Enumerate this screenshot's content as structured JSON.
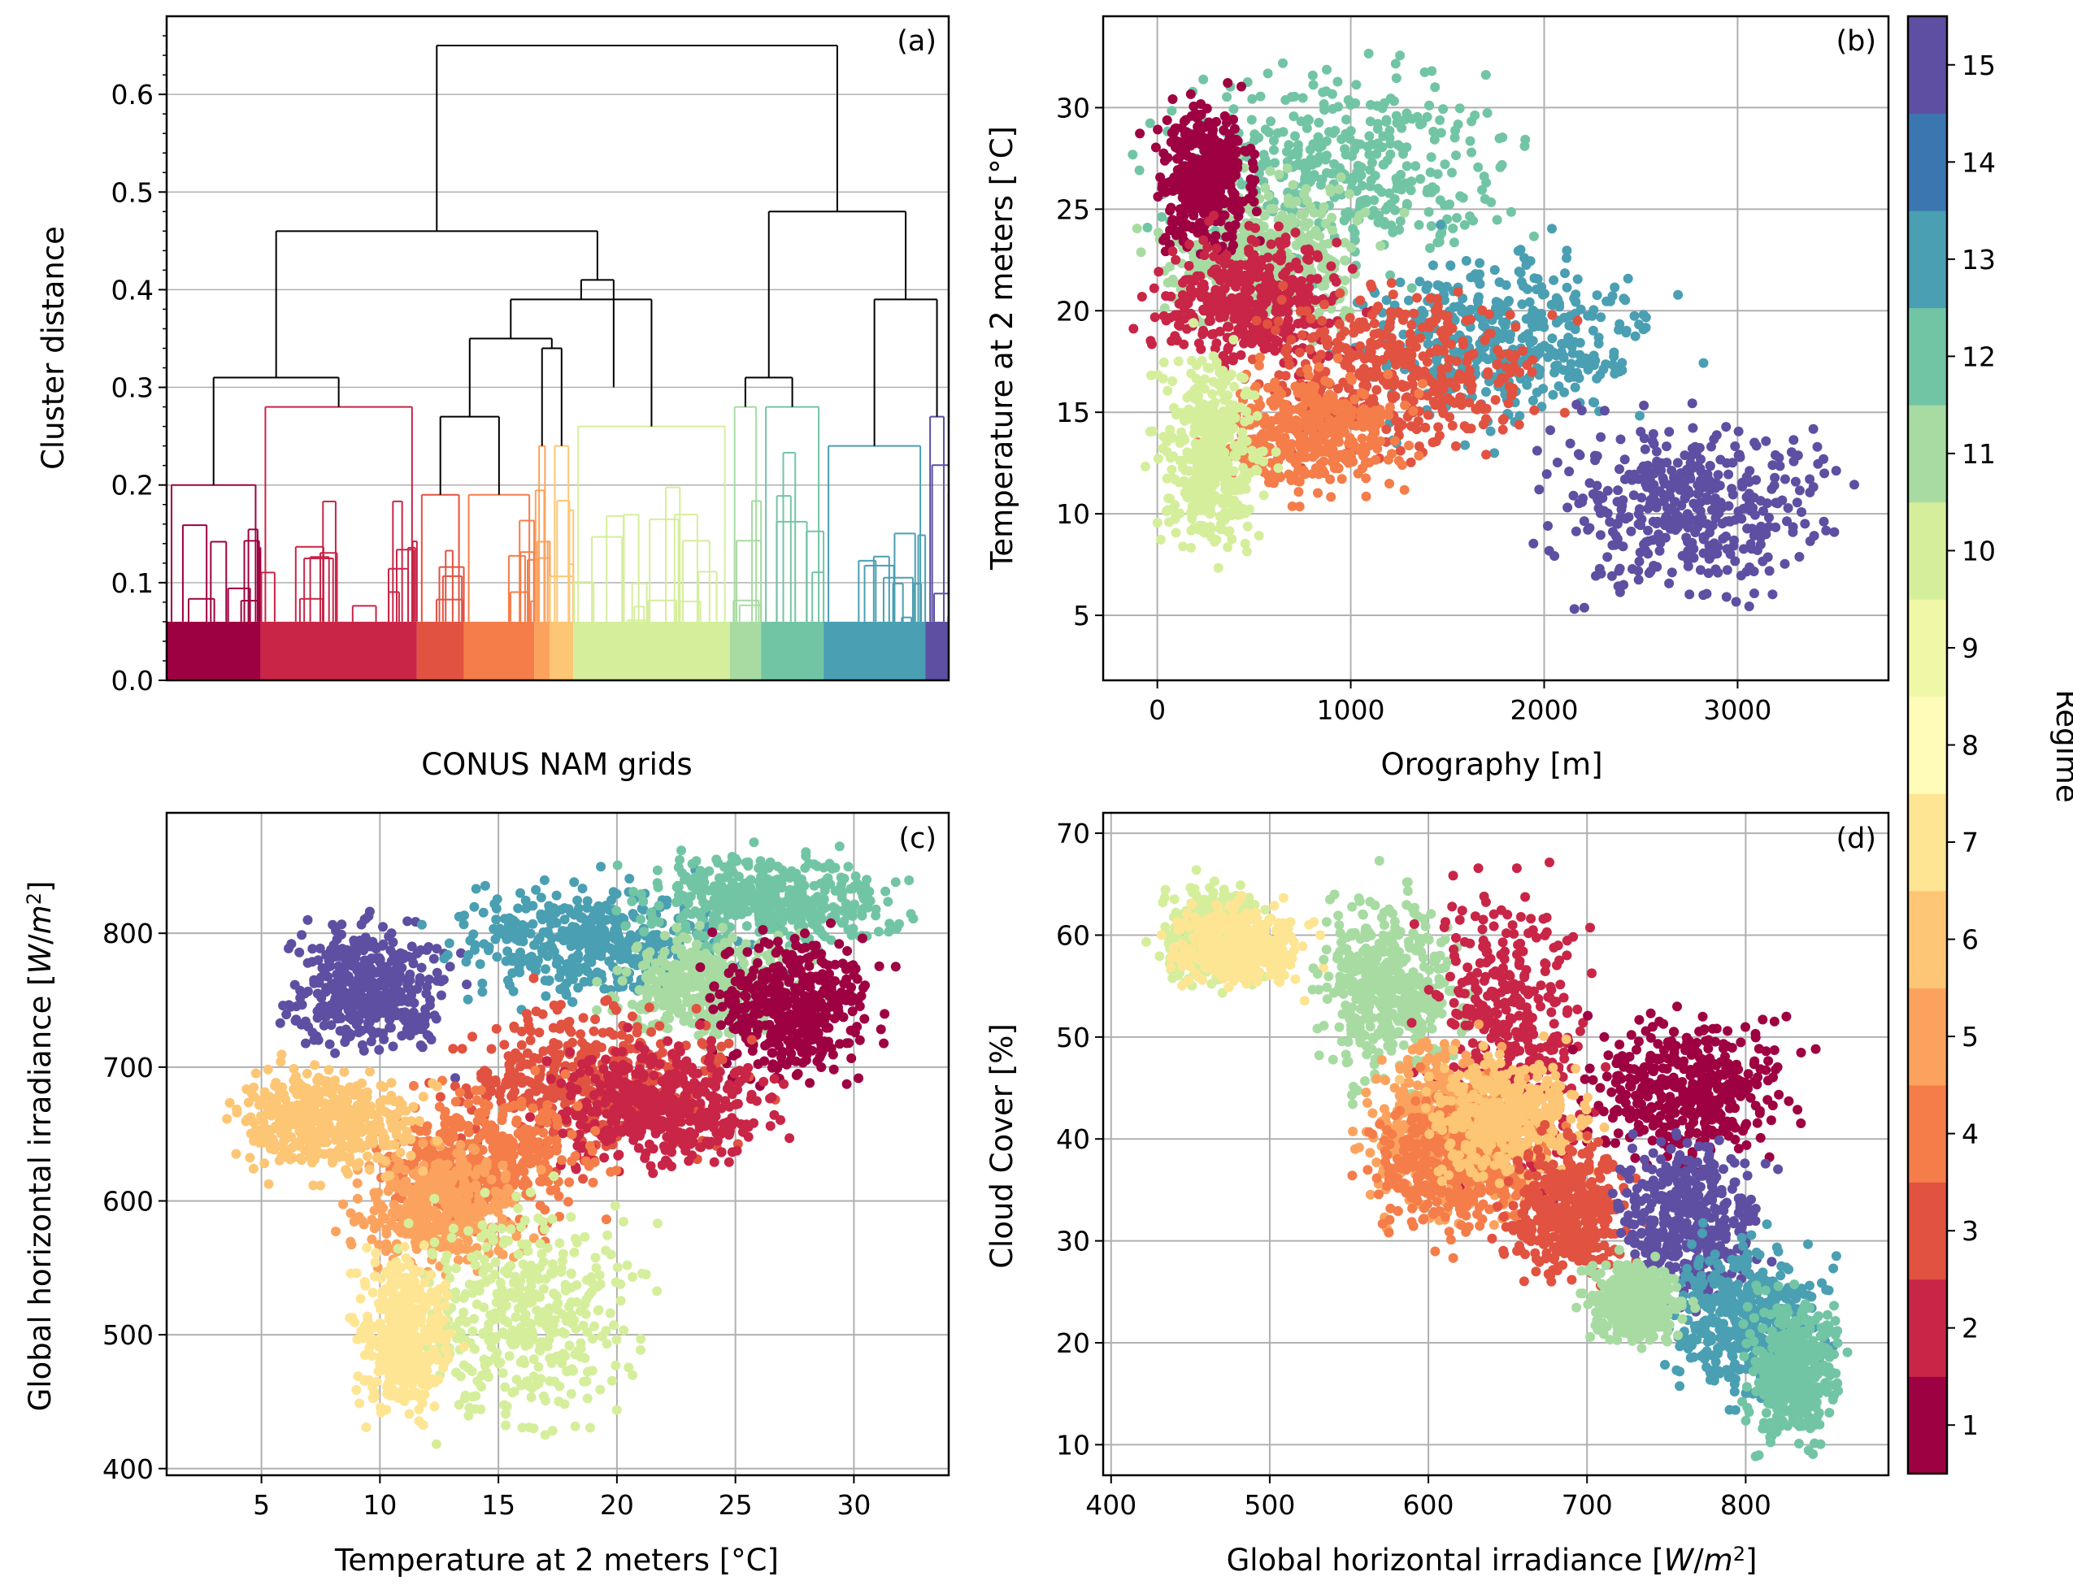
{
  "figure": {
    "colorbar_label": "Regime",
    "colorbar_ticks": [
      "1",
      "2",
      "3",
      "4",
      "5",
      "6",
      "7",
      "8",
      "9",
      "10",
      "11",
      "12",
      "13",
      "14",
      "15"
    ],
    "regime_colors": [
      "#9e0142",
      "#c82547",
      "#e15240",
      "#f47d4a",
      "#fba35e",
      "#fcc674",
      "#fee593",
      "#fffbb8",
      "#f0f8a8",
      "#d5ee9b",
      "#a7dba2",
      "#72c5a4",
      "#4a9fb2",
      "#3c76b1",
      "#5e4fa2"
    ]
  },
  "chart_data": [
    {
      "panel": "(a)",
      "type": "dendrogram",
      "ylabel": "Cluster distance",
      "xlabel": "CONUS NAM grids",
      "ylim": [
        0,
        0.68
      ],
      "yticks": [
        "0.0",
        "0.1",
        "0.2",
        "0.3",
        "0.4",
        "0.5",
        "0.6"
      ],
      "grid": "horizontal",
      "root_height": 0.65,
      "top_merges": [
        0.46,
        0.48,
        0.41,
        0.39,
        0.35,
        0.34,
        0.31,
        0.33
      ]
    },
    {
      "panel": "(b)",
      "type": "scatter",
      "xlabel": "Orography [m]",
      "ylabel": "Temperature at 2 meters [°C]",
      "xlim": [
        -280,
        3780
      ],
      "ylim": [
        1.8,
        34.5
      ],
      "xticks": [
        "0",
        "1000",
        "2000",
        "3000"
      ],
      "yticks": [
        "5",
        "10",
        "15",
        "20",
        "25",
        "30"
      ],
      "grid": true,
      "regime_clouds": [
        {
          "regime": 12,
          "x": [
            0,
            1800
          ],
          "y": [
            22,
            32
          ]
        },
        {
          "regime": 11,
          "x": [
            0,
            1100
          ],
          "y": [
            19,
            27
          ]
        },
        {
          "regime": 13,
          "x": [
            1000,
            2600
          ],
          "y": [
            14,
            23
          ]
        },
        {
          "regime": 1,
          "x": [
            0,
            500
          ],
          "y": [
            23,
            30
          ]
        },
        {
          "regime": 2,
          "x": [
            0,
            1000
          ],
          "y": [
            17,
            24
          ]
        },
        {
          "regime": 3,
          "x": [
            500,
            2000
          ],
          "y": [
            13,
            21
          ]
        },
        {
          "regime": 4,
          "x": [
            300,
            1300
          ],
          "y": [
            11,
            17
          ]
        },
        {
          "regime": 15,
          "x": [
            2000,
            3500
          ],
          "y": [
            6,
            15
          ]
        },
        {
          "regime": 10,
          "x": [
            0,
            550
          ],
          "y": [
            8,
            18
          ]
        }
      ]
    },
    {
      "panel": "(c)",
      "type": "scatter",
      "xlabel": "Temperature at 2 meters [°C]",
      "ylabel": "Global horizontal irradiance [W/m²]",
      "xlim": [
        1,
        34
      ],
      "ylim": [
        395,
        890
      ],
      "xticks": [
        "5",
        "10",
        "15",
        "20",
        "25",
        "30"
      ],
      "yticks": [
        "400",
        "500",
        "600",
        "700",
        "800"
      ],
      "grid": true,
      "regime_clouds": [
        {
          "regime": 15,
          "x": [
            6,
            13
          ],
          "y": [
            710,
            810
          ]
        },
        {
          "regime": 13,
          "x": [
            13,
            25
          ],
          "y": [
            750,
            840
          ]
        },
        {
          "regime": 12,
          "x": [
            21,
            32
          ],
          "y": [
            790,
            860
          ]
        },
        {
          "regime": 11,
          "x": [
            20,
            28
          ],
          "y": [
            720,
            800
          ]
        },
        {
          "regime": 1,
          "x": [
            24,
            31
          ],
          "y": [
            690,
            800
          ]
        },
        {
          "regime": 3,
          "x": [
            13,
            25
          ],
          "y": [
            630,
            750
          ]
        },
        {
          "regime": 2,
          "x": [
            17,
            27
          ],
          "y": [
            620,
            720
          ]
        },
        {
          "regime": 4,
          "x": [
            10,
            19
          ],
          "y": [
            580,
            680
          ]
        },
        {
          "regime": 5,
          "x": [
            9,
            16
          ],
          "y": [
            550,
            640
          ]
        },
        {
          "regime": 6,
          "x": [
            4,
            12
          ],
          "y": [
            620,
            700
          ]
        },
        {
          "regime": 10,
          "x": [
            11,
            21
          ],
          "y": [
            430,
            600
          ]
        },
        {
          "regime": 7,
          "x": [
            9,
            13
          ],
          "y": [
            440,
            560
          ]
        }
      ]
    },
    {
      "panel": "(d)",
      "type": "scatter",
      "xlabel": "Global horizontal irradiance [W/m²]",
      "ylabel": "Cloud Cover [%]",
      "xlim": [
        395,
        890
      ],
      "ylim": [
        7,
        72
      ],
      "xticks": [
        "400",
        "500",
        "600",
        "700",
        "800"
      ],
      "yticks": [
        "10",
        "20",
        "30",
        "40",
        "50",
        "60",
        "70"
      ],
      "grid": true,
      "regime_clouds": [
        {
          "regime": 10,
          "x": [
            430,
            500
          ],
          "y": [
            55,
            65
          ]
        },
        {
          "regime": 7,
          "x": [
            440,
            520
          ],
          "y": [
            55,
            63
          ]
        },
        {
          "regime": 11,
          "x": [
            530,
            620
          ],
          "y": [
            45,
            65
          ]
        },
        {
          "regime": 2,
          "x": [
            600,
            700
          ],
          "y": [
            35,
            65
          ]
        },
        {
          "regime": 1,
          "x": [
            700,
            830
          ],
          "y": [
            38,
            52
          ]
        },
        {
          "regime": 5,
          "x": [
            560,
            660
          ],
          "y": [
            32,
            50
          ]
        },
        {
          "regime": 4,
          "x": [
            560,
            680
          ],
          "y": [
            30,
            45
          ]
        },
        {
          "regime": 6,
          "x": [
            600,
            700
          ],
          "y": [
            36,
            48
          ]
        },
        {
          "regime": 3,
          "x": [
            650,
            730
          ],
          "y": [
            26,
            40
          ]
        },
        {
          "regime": 15,
          "x": [
            720,
            810
          ],
          "y": [
            24,
            40
          ]
        },
        {
          "regime": 13,
          "x": [
            750,
            850
          ],
          "y": [
            15,
            30
          ]
        },
        {
          "regime": 12,
          "x": [
            800,
            860
          ],
          "y": [
            10,
            25
          ]
        },
        {
          "regime": 11,
          "x": [
            700,
            760
          ],
          "y": [
            20,
            28
          ]
        }
      ]
    }
  ]
}
